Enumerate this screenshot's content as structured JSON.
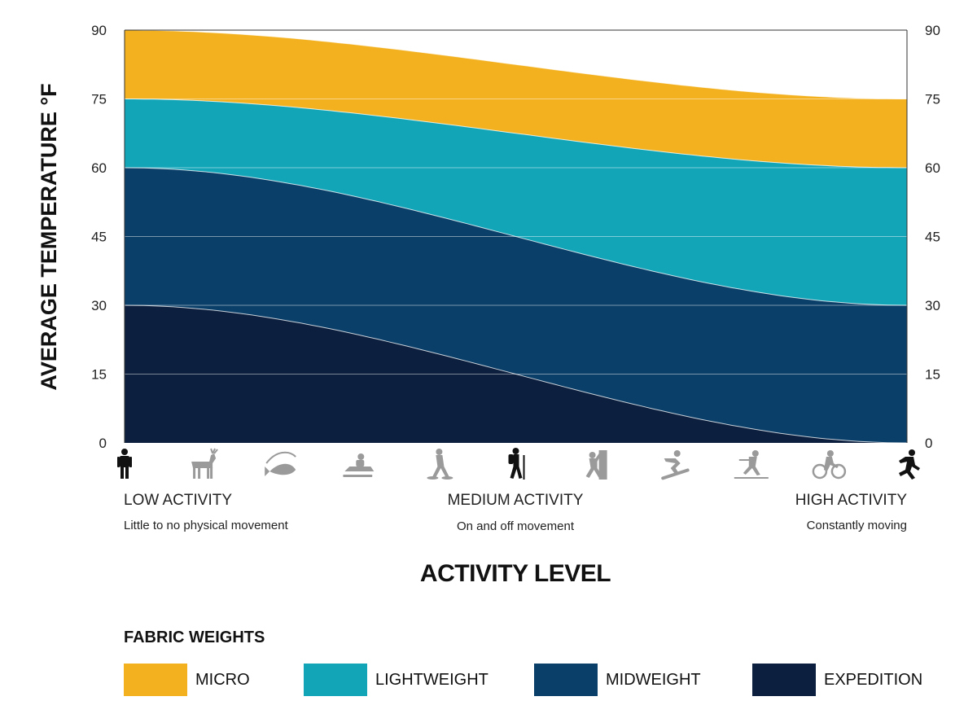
{
  "chart_data": {
    "type": "area",
    "ylabel": "AVERAGE TEMPERATURE °F",
    "xlabel": "ACTIVITY LEVEL",
    "ylim": [
      0,
      90
    ],
    "yticks": [
      0,
      15,
      30,
      45,
      60,
      75,
      90
    ],
    "x": [
      0,
      1,
      2,
      3,
      4,
      5,
      6,
      7,
      8,
      9,
      10
    ],
    "activity_icons": [
      "standing-person-icon",
      "deer-icon",
      "fishing-icon",
      "snowmobile-icon",
      "snowshoeing-icon",
      "hiking-icon",
      "climbing-icon",
      "snowboarding-icon",
      "cross-country-skiing-icon",
      "cycling-icon",
      "running-icon"
    ],
    "highlighted_icons": [
      0,
      5,
      10
    ],
    "x_groups": [
      {
        "label": "LOW ACTIVITY",
        "sublabel": "Little to no physical movement"
      },
      {
        "label": "MEDIUM ACTIVITY",
        "sublabel": "On and off movement"
      },
      {
        "label": "HIGH ACTIVITY",
        "sublabel": "Constantly moving"
      }
    ],
    "boundaries": [
      {
        "name": "top",
        "start": 90,
        "end": 75
      },
      {
        "name": "upper",
        "start": 75,
        "end": 60
      },
      {
        "name": "middle",
        "start": 60,
        "end": 30
      },
      {
        "name": "lower",
        "start": 30,
        "end": 0
      }
    ],
    "legend_title": "FABRIC WEIGHTS",
    "series": [
      {
        "name": "MICRO",
        "color": "#F3B11F",
        "between": [
          "upper",
          "top"
        ]
      },
      {
        "name": "LIGHTWEIGHT",
        "color": "#12A5B8",
        "between": [
          "middle",
          "upper"
        ]
      },
      {
        "name": "MIDWEIGHT",
        "color": "#0A3F69",
        "between": [
          "lower",
          "middle"
        ]
      },
      {
        "name": "EXPEDITION",
        "color": "#0C1F3E",
        "between": [
          null,
          "lower"
        ]
      }
    ],
    "icon_colors": {
      "highlight": "#111111",
      "muted": "#9a9a9a"
    },
    "grid": true,
    "legend_position": "bottom"
  }
}
